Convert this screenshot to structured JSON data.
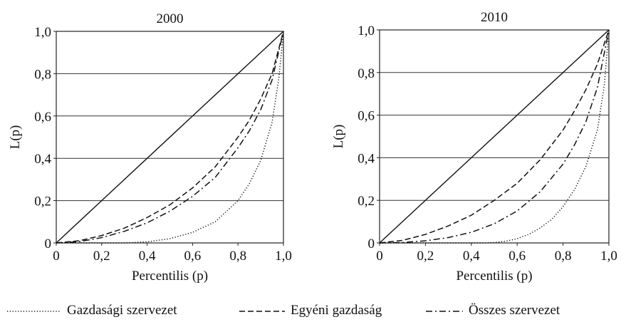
{
  "chart_data": [
    {
      "type": "line",
      "title": "2000",
      "xlabel": "Percentilis (p)",
      "ylabel": "L(p)",
      "xlim": [
        0,
        1
      ],
      "ylim": [
        0,
        1
      ],
      "x_ticks": [
        "0",
        "0,2",
        "0,4",
        "0,6",
        "0,8",
        "1,0"
      ],
      "y_ticks": [
        "0",
        "0,2",
        "0,4",
        "0,6",
        "0,8",
        "1,0"
      ],
      "grid": "horizontal",
      "series": [
        {
          "style": "solid",
          "x": [
            0,
            1
          ],
          "y": [
            0,
            1
          ]
        },
        {
          "name": "Gazdasági szervezet",
          "style": "dotted",
          "x": [
            0,
            0.3,
            0.4,
            0.5,
            0.6,
            0.7,
            0.8,
            0.85,
            0.9,
            0.95,
            0.98,
            1.0
          ],
          "y": [
            0,
            0.0,
            0.005,
            0.02,
            0.05,
            0.1,
            0.2,
            0.28,
            0.39,
            0.57,
            0.78,
            1.0
          ]
        },
        {
          "name": "Egyéni gazdaság",
          "style": "dashed",
          "x": [
            0,
            0.1,
            0.2,
            0.3,
            0.4,
            0.5,
            0.6,
            0.7,
            0.8,
            0.85,
            0.9,
            0.95,
            1.0
          ],
          "y": [
            0,
            0.01,
            0.035,
            0.07,
            0.12,
            0.18,
            0.26,
            0.36,
            0.5,
            0.58,
            0.68,
            0.8,
            1.0
          ]
        },
        {
          "name": "Összes szervezet",
          "style": "dashdot",
          "x": [
            0,
            0.1,
            0.2,
            0.3,
            0.4,
            0.5,
            0.6,
            0.7,
            0.8,
            0.85,
            0.9,
            0.95,
            1.0
          ],
          "y": [
            0,
            0.006,
            0.025,
            0.055,
            0.095,
            0.15,
            0.22,
            0.31,
            0.45,
            0.53,
            0.63,
            0.77,
            1.0
          ]
        }
      ]
    },
    {
      "type": "line",
      "title": "2010",
      "xlabel": "Percentilis (p)",
      "ylabel": "L(p)",
      "xlim": [
        0,
        1
      ],
      "ylim": [
        0,
        1
      ],
      "x_ticks": [
        "0",
        "0,2",
        "0,4",
        "0,6",
        "0,8",
        "1,0"
      ],
      "y_ticks": [
        "0",
        "0,2",
        "0,4",
        "0,6",
        "0,8",
        "1,0"
      ],
      "grid": "horizontal",
      "series": [
        {
          "style": "solid",
          "x": [
            0,
            1
          ],
          "y": [
            0,
            1
          ]
        },
        {
          "name": "Gazdasági szervezet",
          "style": "dotted",
          "x": [
            0,
            0.45,
            0.5,
            0.55,
            0.6,
            0.65,
            0.7,
            0.75,
            0.8,
            0.85,
            0.9,
            0.95,
            0.98,
            1.0
          ],
          "y": [
            0,
            0.0,
            0.002,
            0.008,
            0.02,
            0.04,
            0.07,
            0.11,
            0.17,
            0.25,
            0.36,
            0.53,
            0.74,
            1.0
          ]
        },
        {
          "name": "Egyéni gazdaság",
          "style": "dashed",
          "x": [
            0,
            0.1,
            0.2,
            0.3,
            0.4,
            0.5,
            0.6,
            0.7,
            0.8,
            0.85,
            0.9,
            0.95,
            1.0
          ],
          "y": [
            0,
            0.012,
            0.04,
            0.08,
            0.13,
            0.2,
            0.28,
            0.39,
            0.53,
            0.62,
            0.72,
            0.84,
            1.0
          ]
        },
        {
          "name": "Összes szervezet",
          "style": "dashdot",
          "x": [
            0,
            0.1,
            0.2,
            0.3,
            0.4,
            0.5,
            0.6,
            0.7,
            0.8,
            0.85,
            0.9,
            0.95,
            1.0
          ],
          "y": [
            0,
            0.002,
            0.01,
            0.025,
            0.05,
            0.09,
            0.15,
            0.24,
            0.37,
            0.46,
            0.57,
            0.73,
            1.0
          ]
        }
      ]
    }
  ],
  "legend": [
    {
      "label": "Gazdasági szervezet",
      "style": "dotted"
    },
    {
      "label": "Egyéni gazdaság",
      "style": "dashed"
    },
    {
      "label": "Összes szervezet",
      "style": "dashdot"
    }
  ]
}
